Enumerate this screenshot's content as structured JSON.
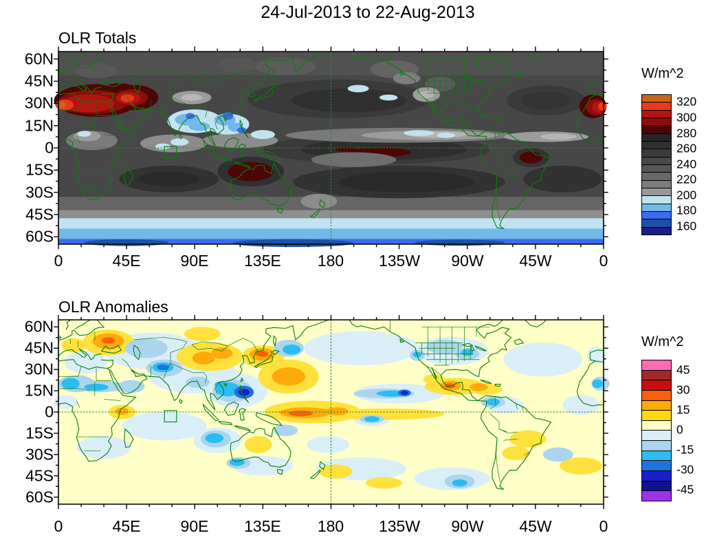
{
  "main_title": "24-Jul-2013 to 22-Aug-2013",
  "panels": [
    {
      "title": "OLR Totals",
      "x_tick_labels": [
        "0",
        "45E",
        "90E",
        "135E",
        "180",
        "135W",
        "90W",
        "45W",
        "0"
      ],
      "y_tick_labels": [
        "60N",
        "45N",
        "30N",
        "15N",
        "0",
        "15S",
        "30S",
        "45S",
        "60S"
      ],
      "colorbar": {
        "title": "W/m^2",
        "tick_labels": [
          "320",
          "300",
          "280",
          "260",
          "240",
          "220",
          "200",
          "180",
          "160"
        ],
        "cells": [
          {
            "color": "#c96618",
            "range": ">320"
          },
          {
            "color": "#e8391b",
            "range": "310-320"
          },
          {
            "color": "#b41511",
            "range": "300-310"
          },
          {
            "color": "#8c0d09",
            "range": "290-300"
          },
          {
            "color": "#4c0605",
            "range": "280-290"
          },
          {
            "color": "#262626",
            "range": "270-280"
          },
          {
            "color": "#303030",
            "range": "260-270"
          },
          {
            "color": "#3b3b3b",
            "range": "250-260"
          },
          {
            "color": "#484848",
            "range": "240-250"
          },
          {
            "color": "#565656",
            "range": "230-240"
          },
          {
            "color": "#686868",
            "range": "220-230"
          },
          {
            "color": "#7d7d7d",
            "range": "210-220"
          },
          {
            "color": "#989898",
            "range": "200-210"
          },
          {
            "color": "#c3e2f0",
            "range": "190-200"
          },
          {
            "color": "#72b8e8",
            "range": "180-190"
          },
          {
            "color": "#3a6cf0",
            "range": "170-180"
          },
          {
            "color": "#1b52a8",
            "range": "160-170"
          },
          {
            "color": "#1c1c85",
            "range": "<160"
          }
        ]
      }
    },
    {
      "title": "OLR Anomalies",
      "x_tick_labels": [
        "0",
        "45E",
        "90E",
        "135E",
        "180",
        "135W",
        "90W",
        "45W",
        "0"
      ],
      "y_tick_labels": [
        "60N",
        "45N",
        "30N",
        "15N",
        "0",
        "15S",
        "30S",
        "45S",
        "60S"
      ],
      "colorbar": {
        "title": "W/m^2",
        "tick_labels": [
          "45",
          "30",
          "15",
          "0",
          "-15",
          "-30",
          "-45"
        ],
        "cells": [
          {
            "color": "#fb6cb4",
            "range": ">45"
          },
          {
            "color": "#a02a28",
            "range": "37.5 to 45"
          },
          {
            "color": "#c80f0f",
            "range": "30 to 37.5"
          },
          {
            "color": "#fb6007",
            "range": "22.5 to 30"
          },
          {
            "color": "#feaa0a",
            "range": "15 to 22.5"
          },
          {
            "color": "#fed90f",
            "range": "7.5 to 15"
          },
          {
            "color": "#ffffc8",
            "range": "0 to 7.5"
          },
          {
            "color": "#daeef8",
            "range": "-7.5 to 0"
          },
          {
            "color": "#abd4ee",
            "range": "-15 to -7.5"
          },
          {
            "color": "#2abdf2",
            "range": "-22.5 to -15"
          },
          {
            "color": "#2072e0",
            "range": "-30 to -22.5"
          },
          {
            "color": "#1a1dce",
            "range": "-37.5 to -30"
          },
          {
            "color": "#10128e",
            "range": "-45 to -37.5"
          },
          {
            "color": "#9b33ea",
            "range": "<-45"
          }
        ]
      }
    }
  ],
  "overlays": {
    "coastline_color": "#0a7d0a",
    "reference_lines": "dashed green equator and 180 dateline",
    "analysis_box_region": "70E-78E, 1N-8S"
  },
  "chart_data": [
    {
      "type": "heatmap",
      "title": "OLR Totals",
      "units": "W/m^2",
      "projection": "global cylindrical, longitude 0-360 (0 at both edges), latitude 65N-65S",
      "x_axis": {
        "tick_labels": [
          "0",
          "45E",
          "90E",
          "135E",
          "180",
          "135W",
          "90W",
          "45W",
          "0"
        ],
        "minor_tick_deg": 15
      },
      "y_axis": {
        "tick_labels": [
          "60N",
          "45N",
          "30N",
          "15N",
          "0",
          "15S",
          "30S",
          "45S",
          "60S"
        ],
        "minor_tick_deg": 7.5
      },
      "colorbar_labeled_levels": [
        160,
        180,
        200,
        220,
        240,
        260,
        280,
        300,
        320
      ],
      "contour_interval": 10,
      "palette_top_to_bottom": [
        "#c96618",
        "#e8391b",
        "#b41511",
        "#8c0d09",
        "#4c0605",
        "#262626",
        "#303030",
        "#3b3b3b",
        "#484848",
        "#565656",
        "#686868",
        "#7d7d7d",
        "#989898",
        "#c3e2f0",
        "#72b8e8",
        "#3a6cf0",
        "#1b52a8",
        "#1c1c85"
      ],
      "features": [
        {
          "region": "North Africa / Sahara / Arabian Peninsula / Middle East",
          "lon": "0E-60E",
          "lat": "18N-40N",
          "value_wm2": "290 to >320 (maxima near 5E,28N and 45E,33N)"
        },
        {
          "region": "West Africa at map wrap (right edge)",
          "lon": "18W-0",
          "lat": "20N-33N",
          "value_wm2": "290 to >320"
        },
        {
          "region": "Central equatorial Pacific dry zone",
          "lon": "167E-128W",
          "lat": "8S-2N",
          "value_wm2": "280-290"
        },
        {
          "region": "Northern Australia",
          "lon": "111E-143E",
          "lat": "9S-23S",
          "value_wm2": "280-290"
        },
        {
          "region": "Eastern Brazil",
          "lon": "60W-42W",
          "lat": "3S-11S",
          "value_wm2": "280-290"
        },
        {
          "region": "India / Bay of Bengal / Indochina deep convection",
          "lon": "70E-125E",
          "lat": "5N-28N",
          "value_wm2": "160-200"
        },
        {
          "region": "East Pacific and Atlantic ITCZ band",
          "lon": "150W-10W",
          "lat": "5N-12N",
          "value_wm2": "195-215"
        },
        {
          "region": "Equatorial Africa (Congo) and central Indian Ocean",
          "value_wm2": "195-215"
        },
        {
          "region": "Subtropical ocean bands both hemispheres",
          "value_wm2": "250-275"
        },
        {
          "region": "Southern Ocean 48S-65S",
          "value_wm2": "200 decreasing to <160 poleward"
        }
      ]
    },
    {
      "type": "heatmap",
      "title": "OLR Anomalies",
      "units": "W/m^2",
      "projection": "global cylindrical, longitude 0-360 (0 at both edges), latitude 65N-65S",
      "x_axis": {
        "tick_labels": [
          "0",
          "45E",
          "90E",
          "135E",
          "180",
          "135W",
          "90W",
          "45W",
          "0"
        ],
        "minor_tick_deg": 15
      },
      "y_axis": {
        "tick_labels": [
          "60N",
          "45N",
          "30N",
          "15N",
          "0",
          "15S",
          "30S",
          "45S",
          "60S"
        ],
        "minor_tick_deg": 7.5
      },
      "colorbar_labeled_levels": [
        -45,
        -30,
        -15,
        0,
        15,
        30,
        45
      ],
      "contour_interval": 7.5,
      "palette_top_to_bottom": [
        "#fb6cb4",
        "#a02a28",
        "#c80f0f",
        "#fb6007",
        "#feaa0a",
        "#fed90f",
        "#ffffc8",
        "#daeef8",
        "#abd4ee",
        "#2abdf2",
        "#2072e0",
        "#1a1dce",
        "#10128e",
        "#9b33ea"
      ],
      "features": [
        {
          "region": "Pakistan / northwest India",
          "lon": "58E-80E",
          "lat": "22N-37N",
          "value_wm2": "-15 to -37.5 (enhanced convection)"
        },
        {
          "region": "Philippines / South China Sea",
          "lon": "112E-132E",
          "lat": "4N-22N",
          "value_wm2": "-30 to -45"
        },
        {
          "region": "Sahara / Sahel and wrap at right edge",
          "lon": "10W-35E",
          "lat": "8N-25N",
          "value_wm2": "-7.5 to -22.5"
        },
        {
          "region": "Northeast tropical Pacific spot near 130W,14N",
          "value_wm2": "-30 to -40"
        },
        {
          "region": "West-central equatorial Pacific",
          "lon": "140E-175W",
          "lat": "8S-3N",
          "value_wm2": "+15 to +30 (suppressed convection)"
        },
        {
          "region": "Northwest tropical Pacific",
          "lon": "140E-170E",
          "lat": "10N-35N",
          "value_wm2": "+15 to +25"
        },
        {
          "region": "Japan / Korea",
          "value_wm2": "+15 to +25"
        },
        {
          "region": "Eastern Europe / western Russia",
          "lon": "15E-45E",
          "lat": "44N-58N",
          "value_wm2": "+15 to +25"
        },
        {
          "region": "Mongolia / northern China",
          "value_wm2": "+15 to +25"
        },
        {
          "region": "Southern Mexico / Caribbean",
          "value_wm2": "+15 to +25"
        },
        {
          "region": "Eastern Indian Ocean west of Australia",
          "value_wm2": "-15 to -25"
        },
        {
          "region": "Contiguous United States",
          "value_wm2": "-7.5 to -15"
        },
        {
          "region": "Most remaining areas",
          "value_wm2": "-7.5 to +7.5"
        }
      ]
    }
  ]
}
